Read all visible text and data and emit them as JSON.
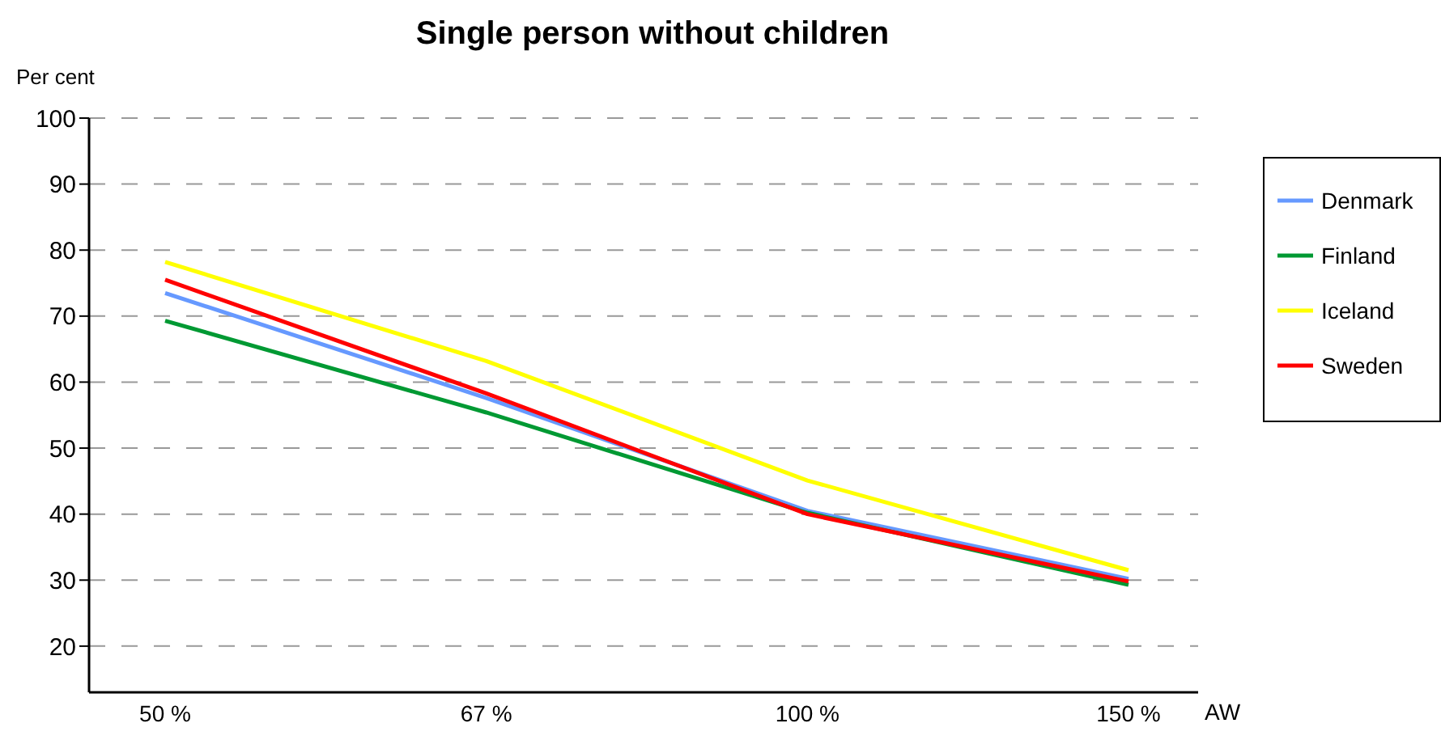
{
  "chart_data": {
    "type": "line",
    "title": "Single person without children",
    "xlabel": "AW",
    "ylabel": "Per cent",
    "categories": [
      "50 %",
      "67 %",
      "100 %",
      "150 %"
    ],
    "ylim": [
      13,
      100
    ],
    "yticks": [
      20,
      30,
      40,
      50,
      60,
      70,
      80,
      90,
      100
    ],
    "grid": "y",
    "legend": "right",
    "marker": "none",
    "line_style": "solid",
    "series": [
      {
        "name": "Denmark",
        "color": "#6699ff",
        "values": [
          73.5,
          57.6,
          40.5,
          30.2
        ]
      },
      {
        "name": "Finland",
        "color": "#009933",
        "values": [
          69.3,
          55.4,
          40.2,
          29.3
        ]
      },
      {
        "name": "Iceland",
        "color": "#ffff00",
        "values": [
          78.2,
          63.2,
          45.1,
          31.5
        ]
      },
      {
        "name": "Sweden",
        "color": "#ff0000",
        "values": [
          75.5,
          58.3,
          40,
          29.8
        ]
      }
    ]
  }
}
